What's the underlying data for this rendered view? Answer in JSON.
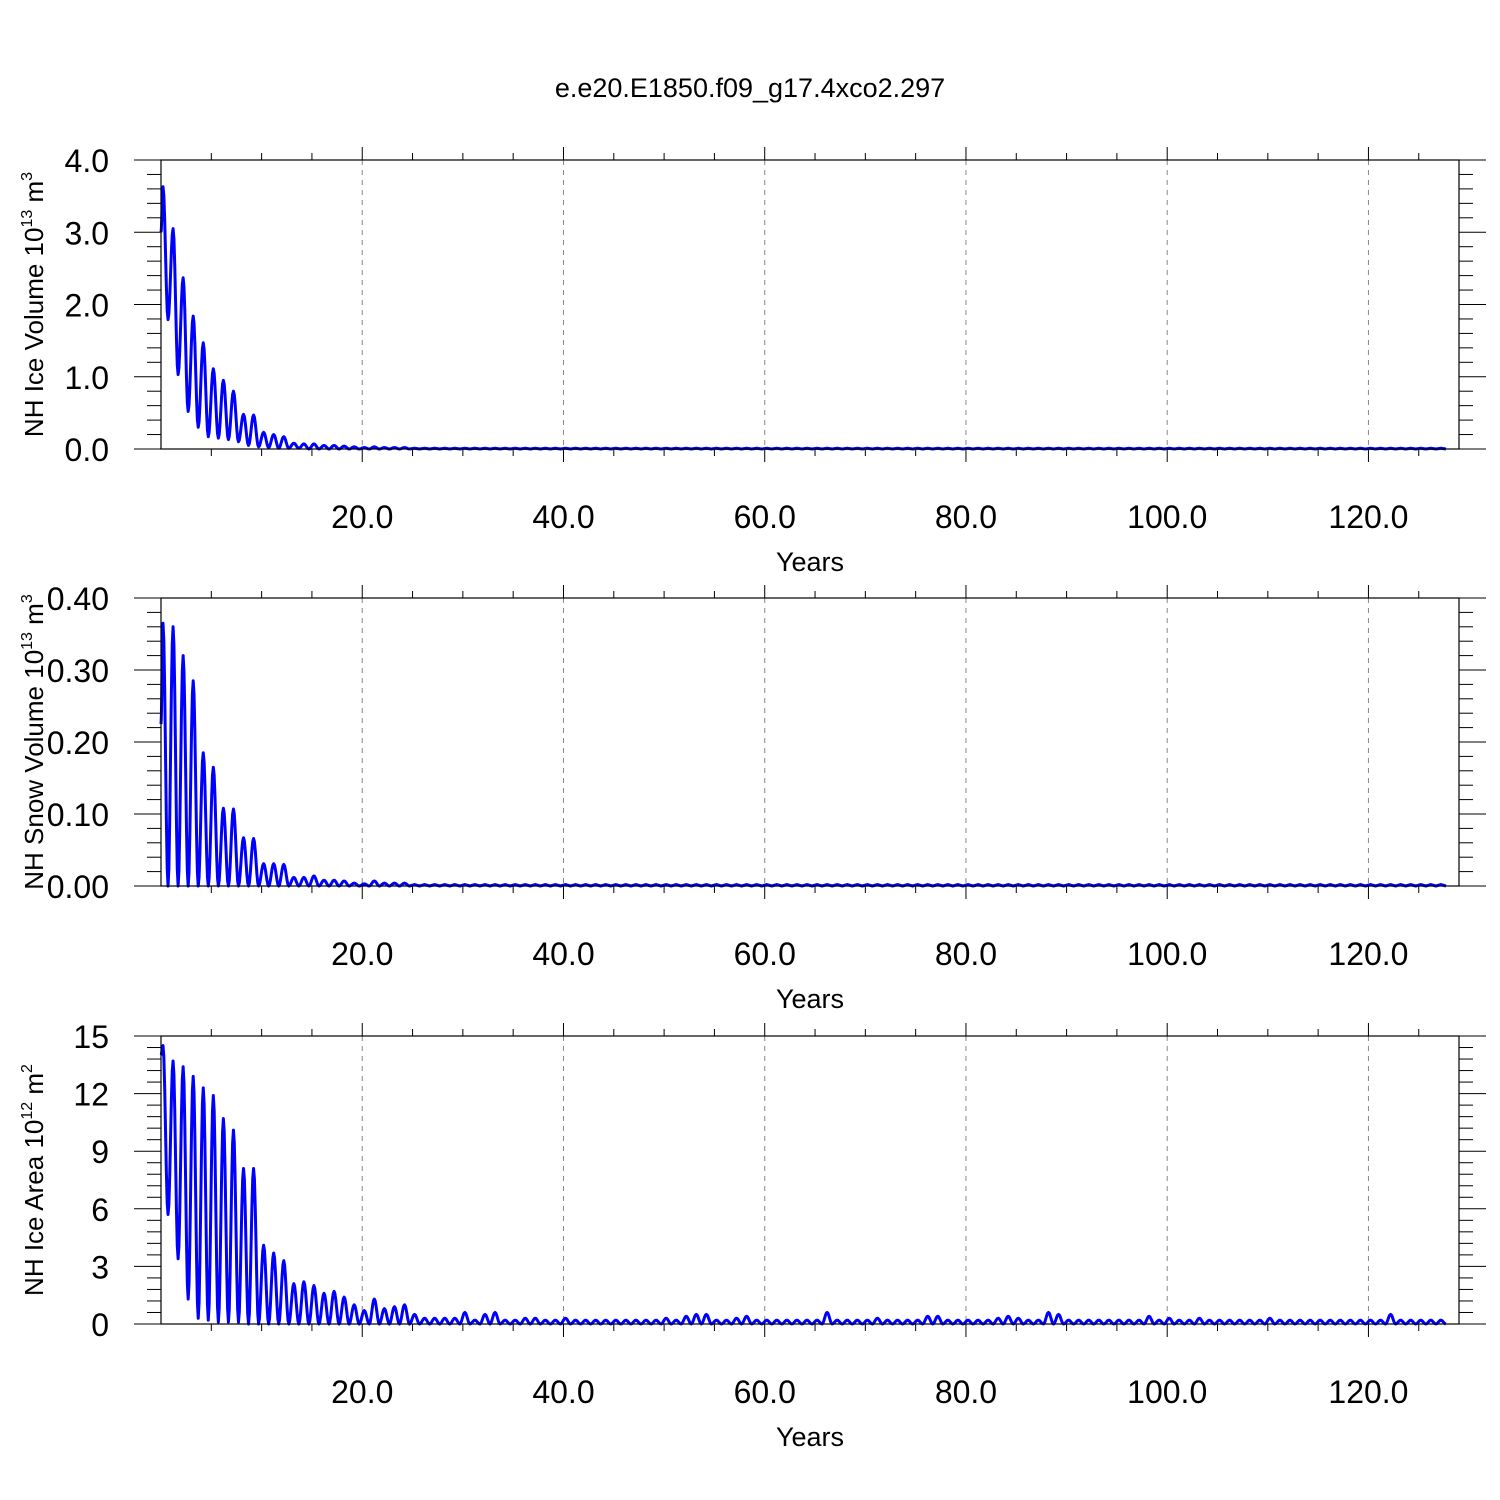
{
  "chart_data": {
    "title": "e.e20.E1850.f09_g17.4xco2.297",
    "panels": [
      {
        "type": "line",
        "ylabel_main": "NH Ice Volume 10",
        "ylabel_exp": "13",
        "ylabel_unit": " m",
        "ylabel_unit_exp": "3",
        "xlabel": "Years",
        "xlim": [
          0,
          129
        ],
        "ylim": [
          0,
          4.0
        ],
        "x_ticks": [
          "20.0",
          "40.0",
          "60.0",
          "80.0",
          "100.0",
          "120.0"
        ],
        "y_ticks": [
          "0.0",
          "1.0",
          "2.0",
          "3.0",
          "4.0"
        ],
        "grid": "vertical dashed at major x ticks",
        "series_color": "#0000ff",
        "annual_cycle": {
          "cycle_start_years": [
            0,
            1,
            2,
            3,
            4,
            5,
            6,
            7,
            8,
            9,
            10,
            11,
            12,
            13,
            14,
            15,
            16,
            17,
            18,
            19,
            20,
            21,
            22,
            23,
            24
          ],
          "maxima": [
            3.63,
            3.05,
            2.37,
            1.84,
            1.47,
            1.11,
            0.95,
            0.8,
            0.48,
            0.47,
            0.23,
            0.2,
            0.17,
            0.08,
            0.07,
            0.07,
            0.05,
            0.05,
            0.04,
            0.03,
            0.02,
            0.03,
            0.02,
            0.02,
            0.02
          ],
          "minima": [
            1.79,
            1.03,
            0.52,
            0.3,
            0.17,
            0.15,
            0.13,
            0.1,
            0.05,
            0.03,
            0.02,
            0.01,
            0.01,
            0.01,
            0.0,
            0.0,
            0.0,
            0.0,
            0.0,
            0.0,
            0.0,
            0.0,
            0.0,
            0.0,
            0.0
          ],
          "start_value": 3.0,
          "after_year_25_max": 0.01
        }
      },
      {
        "type": "line",
        "ylabel_main": "NH Snow Volume 10",
        "ylabel_exp": "13",
        "ylabel_unit": " m",
        "ylabel_unit_exp": "3",
        "xlabel": "Years",
        "xlim": [
          0,
          129
        ],
        "ylim": [
          0,
          0.4
        ],
        "x_ticks": [
          "20.0",
          "40.0",
          "60.0",
          "80.0",
          "100.0",
          "120.0"
        ],
        "y_ticks": [
          "0.00",
          "0.10",
          "0.20",
          "0.30",
          "0.40"
        ],
        "grid": "vertical dashed at major x ticks",
        "series_color": "#0000ff",
        "annual_cycle": {
          "cycle_start_years": [
            0,
            1,
            2,
            3,
            4,
            5,
            6,
            7,
            8,
            9,
            10,
            11,
            12,
            13,
            14,
            15,
            16,
            17,
            18,
            19,
            20,
            21,
            22,
            23,
            24
          ],
          "maxima": [
            0.365,
            0.36,
            0.32,
            0.285,
            0.185,
            0.165,
            0.108,
            0.107,
            0.067,
            0.066,
            0.031,
            0.031,
            0.03,
            0.012,
            0.012,
            0.014,
            0.008,
            0.008,
            0.007,
            0.004,
            0.003,
            0.007,
            0.004,
            0.004,
            0.004
          ],
          "minima": [
            0.0,
            0.0,
            0.0,
            0.0,
            0.0,
            0.0,
            0.0,
            0.0,
            0.0,
            0.0,
            0.0,
            0.0,
            0.0,
            0.0,
            0.0,
            0.0,
            0.0,
            0.0,
            0.0,
            0.0,
            0.0,
            0.0,
            0.0,
            0.0,
            0.0
          ],
          "start_value": 0.225,
          "after_year_25_max": 0.002
        }
      },
      {
        "type": "line",
        "ylabel_main": "NH Ice Area 10",
        "ylabel_exp": "12",
        "ylabel_unit": " m",
        "ylabel_unit_exp": "2",
        "xlabel": "Years",
        "xlim": [
          0,
          129
        ],
        "ylim": [
          0,
          15
        ],
        "x_ticks": [
          "20.0",
          "40.0",
          "60.0",
          "80.0",
          "100.0",
          "120.0"
        ],
        "y_ticks": [
          "0",
          "3",
          "6",
          "9",
          "12",
          "15"
        ],
        "grid": "vertical dashed at major x ticks",
        "series_color": "#0000ff",
        "annual_cycle": {
          "cycle_start_years": [
            0,
            1,
            2,
            3,
            4,
            5,
            6,
            7,
            8,
            9,
            10,
            11,
            12,
            13,
            14,
            15,
            16,
            17,
            18,
            19,
            20,
            21,
            22,
            23,
            24,
            25,
            26,
            27,
            28,
            29,
            30,
            31,
            32,
            33,
            34,
            35,
            36,
            37,
            38,
            39,
            40,
            41,
            42,
            43,
            44,
            45,
            46,
            47,
            48,
            49,
            50,
            51,
            52,
            53,
            54,
            55,
            56,
            57,
            58,
            59,
            60,
            61,
            62,
            63,
            64,
            65,
            66,
            67,
            68,
            69,
            70,
            71,
            72,
            73,
            74,
            75,
            76,
            77,
            78,
            79,
            80,
            81,
            82,
            83,
            84,
            85,
            86,
            87,
            88,
            89,
            90,
            91,
            92,
            93,
            94,
            95,
            96,
            97,
            98,
            99,
            100,
            101,
            102,
            103,
            104,
            105,
            106,
            107,
            108,
            109,
            110,
            111,
            112,
            113,
            114,
            115,
            116,
            117,
            118,
            119,
            120,
            121,
            122,
            123,
            124,
            125,
            126,
            127
          ],
          "maxima": [
            14.5,
            13.7,
            13.4,
            12.9,
            12.3,
            11.9,
            10.7,
            10.1,
            8.1,
            8.1,
            4.1,
            3.7,
            3.3,
            2.1,
            2.2,
            2.0,
            1.6,
            1.7,
            1.4,
            1.0,
            0.7,
            1.3,
            0.8,
            0.9,
            1.0,
            0.5,
            0.3,
            0.3,
            0.3,
            0.3,
            0.6,
            0.2,
            0.5,
            0.6,
            0.2,
            0.2,
            0.3,
            0.3,
            0.2,
            0.2,
            0.3,
            0.2,
            0.2,
            0.2,
            0.2,
            0.2,
            0.2,
            0.2,
            0.2,
            0.2,
            0.3,
            0.2,
            0.4,
            0.5,
            0.5,
            0.2,
            0.2,
            0.3,
            0.4,
            0.2,
            0.2,
            0.2,
            0.2,
            0.2,
            0.2,
            0.2,
            0.6,
            0.2,
            0.2,
            0.2,
            0.2,
            0.3,
            0.2,
            0.2,
            0.2,
            0.2,
            0.4,
            0.4,
            0.2,
            0.2,
            0.2,
            0.2,
            0.2,
            0.3,
            0.4,
            0.3,
            0.2,
            0.2,
            0.6,
            0.5,
            0.2,
            0.2,
            0.2,
            0.2,
            0.2,
            0.2,
            0.2,
            0.2,
            0.4,
            0.2,
            0.3,
            0.2,
            0.2,
            0.3,
            0.2,
            0.2,
            0.2,
            0.2,
            0.2,
            0.2,
            0.3,
            0.2,
            0.2,
            0.2,
            0.2,
            0.2,
            0.2,
            0.2,
            0.2,
            0.2,
            0.2,
            0.2,
            0.5,
            0.2,
            0.2,
            0.2,
            0.2,
            0.2
          ],
          "minima": [
            5.7,
            3.4,
            1.3,
            0.3,
            0.2,
            0.1,
            0.1,
            0.1,
            0.0,
            0.0,
            0.0,
            0.0,
            0.0,
            0.0,
            0.0,
            0.0,
            0.0,
            0.0,
            0.0,
            0.0,
            0.0,
            0.0,
            0.0,
            0.0,
            0.0,
            0.0,
            0.0,
            0.0,
            0.0,
            0.0,
            0.0,
            0.0,
            0.0,
            0.0,
            0.0,
            0.0,
            0.0,
            0.0,
            0.0,
            0.0,
            0.0,
            0.0,
            0.0,
            0.0,
            0.0,
            0.0,
            0.0,
            0.0,
            0.0,
            0.0,
            0.0,
            0.0,
            0.0,
            0.0,
            0.0,
            0.0,
            0.0,
            0.0,
            0.0,
            0.0,
            0.0,
            0.0,
            0.0,
            0.0,
            0.0,
            0.0,
            0.0,
            0.0,
            0.0,
            0.0,
            0.0,
            0.0,
            0.0,
            0.0,
            0.0,
            0.0,
            0.0,
            0.0,
            0.0,
            0.0,
            0.0,
            0.0,
            0.0,
            0.0,
            0.0,
            0.0,
            0.0,
            0.0,
            0.0,
            0.0,
            0.0,
            0.0,
            0.0,
            0.0,
            0.0,
            0.0,
            0.0,
            0.0,
            0.0,
            0.0,
            0.0,
            0.0,
            0.0,
            0.0,
            0.0,
            0.0,
            0.0,
            0.0,
            0.0,
            0.0,
            0.0,
            0.0,
            0.0,
            0.0,
            0.0,
            0.0,
            0.0,
            0.0,
            0.0,
            0.0,
            0.0,
            0.0,
            0.0,
            0.0,
            0.0,
            0.0,
            0.0,
            0.0
          ],
          "start_value": 14.0
        }
      }
    ]
  }
}
